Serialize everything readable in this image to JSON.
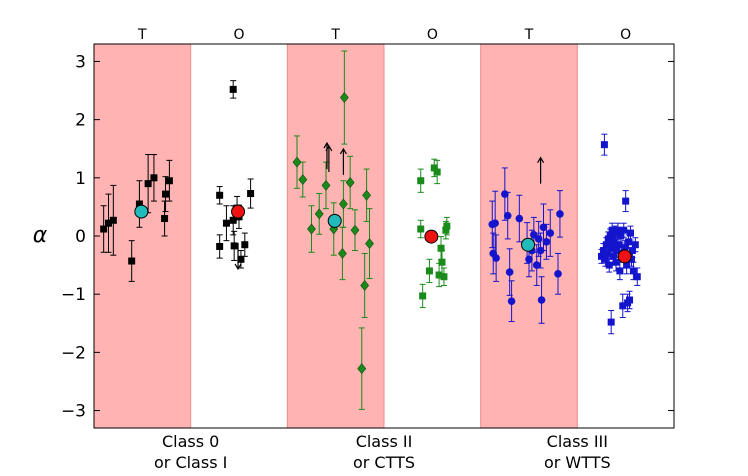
{
  "chart_data": {
    "type": "scatter",
    "title": "",
    "xlabel": "",
    "ylabel": "α",
    "ylim": [
      -3.3,
      3.3
    ],
    "yticks": [
      -3,
      -2,
      -1,
      0,
      1,
      2,
      3
    ],
    "ytick_labels": [
      "−3",
      "−2",
      "−1",
      "0",
      "1",
      "2",
      "3"
    ],
    "grid": false,
    "top_labels": [
      "T",
      "O",
      "T",
      "O",
      "T",
      "O"
    ],
    "groups": [
      {
        "label_line1": "Class 0",
        "label_line2": "or Class I"
      },
      {
        "label_line1": "Class II",
        "label_line2": "or CTTS"
      },
      {
        "label_line1": "Class III",
        "label_line2": "or WTTS"
      }
    ],
    "colors": {
      "shade": "#ffb3b3",
      "class0": "#000000",
      "class2": "#1a8a1a",
      "class3": "#1414cc",
      "median_t": "#22bbbb",
      "median_o": "#ee1111"
    },
    "series": [
      {
        "name": "Class 0/I T",
        "group": 0,
        "col": "T",
        "marker": "square",
        "color": "#000000",
        "points": [
          {
            "x": 0.1,
            "y": 0.12,
            "e": 0.4
          },
          {
            "x": 0.15,
            "y": 0.22,
            "e": 0.5
          },
          {
            "x": 0.2,
            "y": 0.27,
            "e": 0.6
          },
          {
            "x": 0.39,
            "y": -0.43,
            "e": 0.35
          },
          {
            "x": 0.47,
            "y": 0.55,
            "e": 0.4
          },
          {
            "x": 0.56,
            "y": 0.9,
            "e": 0.5
          },
          {
            "x": 0.62,
            "y": 1.0,
            "e": 0.4
          },
          {
            "x": 0.73,
            "y": 0.3,
            "e": 0.3
          },
          {
            "x": 0.74,
            "y": 0.72,
            "e": 0.3
          },
          {
            "x": 0.78,
            "y": 0.95,
            "e": 0.35
          }
        ],
        "lower_limits": []
      },
      {
        "name": "Class 0/I O",
        "group": 0,
        "col": "O",
        "marker": "square",
        "color": "#000000",
        "points": [
          {
            "x": 1.3,
            "y": 0.7,
            "e": 0.15
          },
          {
            "x": 1.3,
            "y": -0.18,
            "e": 0.2
          },
          {
            "x": 1.37,
            "y": 0.22,
            "e": 0.3
          },
          {
            "x": 1.44,
            "y": 2.52,
            "e": 0.15
          },
          {
            "x": 1.44,
            "y": 0.27,
            "e": 0.25
          },
          {
            "x": 1.45,
            "y": -0.17,
            "e": 0.25
          },
          {
            "x": 1.5,
            "y": 0.33,
            "e": 0.2
          },
          {
            "x": 1.52,
            "y": -0.4,
            "e": 0.15
          },
          {
            "x": 1.56,
            "y": -0.15,
            "e": 0.2
          },
          {
            "x": 1.62,
            "y": 0.73,
            "e": 0.25
          },
          {
            "x": 1.48,
            "y": 0.48,
            "e": 0.2
          }
        ],
        "lower_limits": [
          {
            "x": 1.49,
            "y": -0.12,
            "down": true
          }
        ]
      },
      {
        "name": "Class II T",
        "group": 1,
        "col": "T",
        "marker": "diamond",
        "color": "#1a8a1a",
        "points": [
          {
            "x": 2.1,
            "y": 1.27,
            "e": 0.45
          },
          {
            "x": 2.16,
            "y": 0.97,
            "e": 0.3
          },
          {
            "x": 2.25,
            "y": 0.12,
            "e": 0.4
          },
          {
            "x": 2.33,
            "y": 0.38,
            "e": 0.35
          },
          {
            "x": 2.4,
            "y": 0.87,
            "e": 0.4
          },
          {
            "x": 2.48,
            "y": 0.12,
            "e": 0.45
          },
          {
            "x": 2.57,
            "y": -0.3,
            "e": 0.45
          },
          {
            "x": 2.58,
            "y": 0.55,
            "e": 0.4
          },
          {
            "x": 2.59,
            "y": 2.38,
            "e": 0.8
          },
          {
            "x": 2.65,
            "y": 0.92,
            "e": 0.45
          },
          {
            "x": 2.7,
            "y": 0.1,
            "e": 0.35
          },
          {
            "x": 2.77,
            "y": -2.28,
            "e": 0.7
          },
          {
            "x": 2.8,
            "y": -0.85,
            "e": 0.55
          },
          {
            "x": 2.82,
            "y": 0.7,
            "e": 0.45
          },
          {
            "x": 2.85,
            "y": -0.13,
            "e": 0.6
          }
        ],
        "lower_limits": [
          {
            "x": 2.41,
            "y": 1.15
          },
          {
            "x": 2.43,
            "y": 1.1
          },
          {
            "x": 2.58,
            "y": 1.05
          }
        ]
      },
      {
        "name": "Class II O",
        "group": 1,
        "col": "O",
        "marker": "square",
        "color": "#1a8a1a",
        "points": [
          {
            "x": 3.38,
            "y": 0.95,
            "e": 0.2
          },
          {
            "x": 3.38,
            "y": 0.12,
            "e": 0.15
          },
          {
            "x": 3.4,
            "y": -1.03,
            "e": 0.2
          },
          {
            "x": 3.47,
            "y": -0.6,
            "e": 0.2
          },
          {
            "x": 3.52,
            "y": 1.17,
            "e": 0.15
          },
          {
            "x": 3.55,
            "y": 1.1,
            "e": 0.2
          },
          {
            "x": 3.57,
            "y": -0.67,
            "e": 0.2
          },
          {
            "x": 3.59,
            "y": -0.21,
            "e": 0.2
          },
          {
            "x": 3.6,
            "y": -0.45,
            "e": 0.2
          },
          {
            "x": 3.62,
            "y": -0.7,
            "e": 0.15
          },
          {
            "x": 3.64,
            "y": 0.1,
            "e": 0.15
          },
          {
            "x": 3.65,
            "y": 0.17,
            "e": 0.15
          }
        ],
        "lower_limits": []
      },
      {
        "name": "Class III T",
        "group": 2,
        "col": "T",
        "marker": "circle",
        "color": "#1414cc",
        "points": [
          {
            "x": 4.12,
            "y": 0.2,
            "e": 0.4
          },
          {
            "x": 4.13,
            "y": -0.3,
            "e": 0.35
          },
          {
            "x": 4.15,
            "y": 0.22,
            "e": 0.55
          },
          {
            "x": 4.16,
            "y": -0.38,
            "e": 0.4
          },
          {
            "x": 4.25,
            "y": 0.72,
            "e": 0.45
          },
          {
            "x": 4.28,
            "y": 0.35,
            "e": 0.4
          },
          {
            "x": 4.3,
            "y": -0.62,
            "e": 0.4
          },
          {
            "x": 4.32,
            "y": -1.12,
            "e": 0.35
          },
          {
            "x": 4.4,
            "y": 0.3,
            "e": 0.4
          },
          {
            "x": 4.48,
            "y": -0.12,
            "e": 0.35
          },
          {
            "x": 4.5,
            "y": -0.4,
            "e": 0.3
          },
          {
            "x": 4.53,
            "y": -0.25,
            "e": 0.35
          },
          {
            "x": 4.55,
            "y": 0.02,
            "e": 0.3
          },
          {
            "x": 4.58,
            "y": -0.5,
            "e": 0.35
          },
          {
            "x": 4.6,
            "y": -0.05,
            "e": 0.3
          },
          {
            "x": 4.62,
            "y": -0.25,
            "e": 0.3
          },
          {
            "x": 4.63,
            "y": -1.1,
            "e": 0.4
          },
          {
            "x": 4.65,
            "y": 0.15,
            "e": 0.4
          },
          {
            "x": 4.68,
            "y": -0.1,
            "e": 0.3
          },
          {
            "x": 4.72,
            "y": 0.05,
            "e": 0.4
          },
          {
            "x": 4.8,
            "y": -0.65,
            "e": 0.35
          },
          {
            "x": 4.82,
            "y": 0.38,
            "e": 0.4
          }
        ],
        "lower_limits": [
          {
            "x": 4.62,
            "y": 0.9
          }
        ]
      },
      {
        "name": "Class III O",
        "group": 2,
        "col": "O",
        "marker": "square",
        "color": "#1414cc",
        "points": [
          {
            "x": 5.28,
            "y": 1.57,
            "e": 0.18
          },
          {
            "x": 5.25,
            "y": -0.35,
            "e": 0.12
          },
          {
            "x": 5.27,
            "y": -0.25,
            "e": 0.12
          },
          {
            "x": 5.29,
            "y": -0.4,
            "e": 0.12
          },
          {
            "x": 5.3,
            "y": -0.15,
            "e": 0.12
          },
          {
            "x": 5.31,
            "y": -0.3,
            "e": 0.15
          },
          {
            "x": 5.32,
            "y": -0.05,
            "e": 0.12
          },
          {
            "x": 5.33,
            "y": -0.5,
            "e": 0.12
          },
          {
            "x": 5.34,
            "y": 0.0,
            "e": 0.12
          },
          {
            "x": 5.35,
            "y": -0.2,
            "e": 0.15
          },
          {
            "x": 5.36,
            "y": 0.1,
            "e": 0.12
          },
          {
            "x": 5.37,
            "y": -0.35,
            "e": 0.15
          },
          {
            "x": 5.38,
            "y": -0.1,
            "e": 0.12
          },
          {
            "x": 5.39,
            "y": 0.05,
            "e": 0.12
          },
          {
            "x": 5.4,
            "y": -0.45,
            "e": 0.15
          },
          {
            "x": 5.41,
            "y": -0.25,
            "e": 0.12
          },
          {
            "x": 5.42,
            "y": 0.1,
            "e": 0.12
          },
          {
            "x": 5.43,
            "y": -0.15,
            "e": 0.12
          },
          {
            "x": 5.44,
            "y": -0.6,
            "e": 0.15
          },
          {
            "x": 5.45,
            "y": 0.0,
            "e": 0.12
          },
          {
            "x": 5.46,
            "y": -0.3,
            "e": 0.12
          },
          {
            "x": 5.47,
            "y": -1.2,
            "e": 0.2
          },
          {
            "x": 5.48,
            "y": 0.1,
            "e": 0.12
          },
          {
            "x": 5.49,
            "y": -0.2,
            "e": 0.12
          },
          {
            "x": 5.5,
            "y": 0.6,
            "e": 0.18
          },
          {
            "x": 5.51,
            "y": -0.5,
            "e": 0.15
          },
          {
            "x": 5.52,
            "y": -1.15,
            "e": 0.15
          },
          {
            "x": 5.53,
            "y": -0.1,
            "e": 0.12
          },
          {
            "x": 5.54,
            "y": -1.1,
            "e": 0.15
          },
          {
            "x": 5.55,
            "y": 0.05,
            "e": 0.12
          },
          {
            "x": 5.56,
            "y": -0.4,
            "e": 0.12
          },
          {
            "x": 5.57,
            "y": -0.25,
            "e": 0.12
          },
          {
            "x": 5.58,
            "y": -0.6,
            "e": 0.15
          },
          {
            "x": 5.6,
            "y": -0.15,
            "e": 0.12
          },
          {
            "x": 5.62,
            "y": -0.7,
            "e": 0.15
          },
          {
            "x": 5.35,
            "y": -1.48,
            "e": 0.2
          },
          {
            "x": 5.37,
            "y": -0.15,
            "e": 0.12
          }
        ],
        "lower_limits": []
      }
    ],
    "medians": [
      {
        "name": "Class 0/I T median",
        "x": 0.49,
        "y": 0.42,
        "kind": "T"
      },
      {
        "name": "Class 0/I O median",
        "x": 1.49,
        "y": 0.42,
        "kind": "O"
      },
      {
        "name": "Class II T median",
        "x": 2.49,
        "y": 0.26,
        "kind": "T"
      },
      {
        "name": "Class II O median",
        "x": 3.49,
        "y": -0.01,
        "kind": "O"
      },
      {
        "name": "Class III T median",
        "x": 4.49,
        "y": -0.15,
        "kind": "T"
      },
      {
        "name": "Class III O median",
        "x": 5.49,
        "y": -0.35,
        "kind": "O"
      }
    ]
  }
}
